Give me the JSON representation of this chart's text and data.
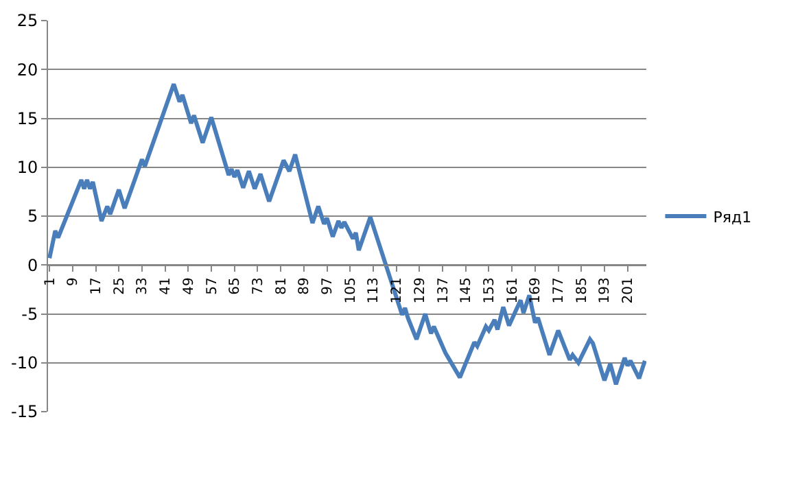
{
  "chart_data": {
    "type": "line",
    "x": [
      1,
      3,
      4,
      12,
      13,
      14,
      15,
      16,
      19,
      21,
      22,
      25,
      27,
      33,
      34,
      44,
      46,
      47,
      50,
      51,
      54,
      57,
      63,
      64,
      65,
      66,
      68,
      70,
      72,
      74,
      77,
      82,
      84,
      86,
      92,
      94,
      96,
      97,
      99,
      101,
      102,
      103,
      106,
      107,
      108,
      112,
      123,
      124,
      125,
      128,
      131,
      133,
      134,
      138,
      139,
      143,
      148,
      149,
      152,
      153,
      155,
      156,
      158,
      160,
      164,
      165,
      167,
      169,
      170,
      174,
      177,
      181,
      182,
      184,
      188,
      189,
      193,
      195,
      197,
      200,
      201,
      202,
      205,
      207
    ],
    "series": [
      {
        "name": "Ряд1",
        "color": "#4a7ebb",
        "values": [
          0.7,
          3.5,
          2.8,
          8.7,
          7.8,
          8.7,
          7.8,
          8.5,
          4.5,
          6,
          5.2,
          7.7,
          5.8,
          10.8,
          10.1,
          18.5,
          16.7,
          17.4,
          14.5,
          15.3,
          12.5,
          15.1,
          9.2,
          9.8,
          9.0,
          9.7,
          7.9,
          9.6,
          7.8,
          9.3,
          6.5,
          10.7,
          9.6,
          11.3,
          4.3,
          6.0,
          4.2,
          4.8,
          2.9,
          4.5,
          3.8,
          4.4,
          2.7,
          3.3,
          1.5,
          4.9,
          -5.1,
          -4.4,
          -5.4,
          -7.6,
          -5.0,
          -7.0,
          -6.3,
          -9.0,
          -9.5,
          -11.5,
          -7.9,
          -8.3,
          -6.3,
          -6.7,
          -5.6,
          -6.6,
          -4.3,
          -6.2,
          -3.6,
          -4.9,
          -3.1,
          -5.9,
          -5.4,
          -9.2,
          -6.7,
          -9.7,
          -9.2,
          -10.0,
          -7.6,
          -8.0,
          -11.8,
          -10.1,
          -12.2,
          -9.5,
          -10.3,
          -9.8,
          -11.6,
          -9.8
        ]
      }
    ],
    "xlim": [
      0.5,
      207.5
    ],
    "xticks": [
      1,
      9,
      17,
      25,
      33,
      41,
      49,
      57,
      65,
      73,
      81,
      89,
      97,
      105,
      113,
      121,
      129,
      137,
      145,
      153,
      161,
      169,
      177,
      185,
      193,
      201
    ],
    "ylim": [
      -15,
      25
    ],
    "yticks": [
      -15,
      -10,
      -5,
      0,
      5,
      10,
      15,
      20,
      25
    ],
    "grid": "y",
    "legend": "right",
    "marker": "none",
    "line_style": "solid"
  }
}
